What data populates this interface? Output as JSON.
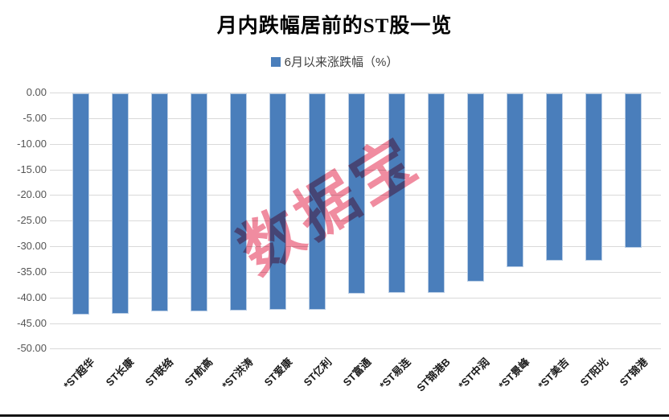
{
  "title": "月内跌幅居前的ST股一览",
  "legend": {
    "label": "6月以来涨跌幅（%）",
    "swatch_color": "#4a7ebb"
  },
  "watermark_text": "数据宝",
  "colors": {
    "bar_fill": "#4a7ebb",
    "bar_border": "#b9cde5",
    "gridline": "#d9d9d9",
    "watermark_pink": "#f08ca0"
  },
  "chart_data": {
    "type": "bar",
    "title": "月内跌幅居前的ST股一览",
    "series_name": "6月以来涨跌幅（%）",
    "categories": [
      "*ST超华",
      "ST长康",
      "ST联络",
      "ST航高",
      "*ST洪涛",
      "ST爱康",
      "ST亿利",
      "ST富通",
      "*ST易连",
      "ST锦港B",
      "*ST中润",
      "*ST景峰",
      "*ST美吉",
      "ST阳光",
      "ST锦港"
    ],
    "values": [
      -43.2,
      -43.0,
      -42.6,
      -42.5,
      -42.4,
      -42.3,
      -42.2,
      -39.1,
      -39.0,
      -38.9,
      -36.8,
      -33.9,
      -32.7,
      -32.6,
      -30.1
    ],
    "xlabel": "",
    "ylabel": "",
    "ylim": [
      -50,
      0
    ],
    "ytick_step": 5,
    "ytick_labels": [
      "0.00",
      "-5.00",
      "-10.00",
      "-15.00",
      "-20.00",
      "-25.00",
      "-30.00",
      "-35.00",
      "-40.00",
      "-45.00",
      "-50.00"
    ],
    "grid": true,
    "legend_position": "top-center",
    "bar_color": "#4a7ebb"
  }
}
